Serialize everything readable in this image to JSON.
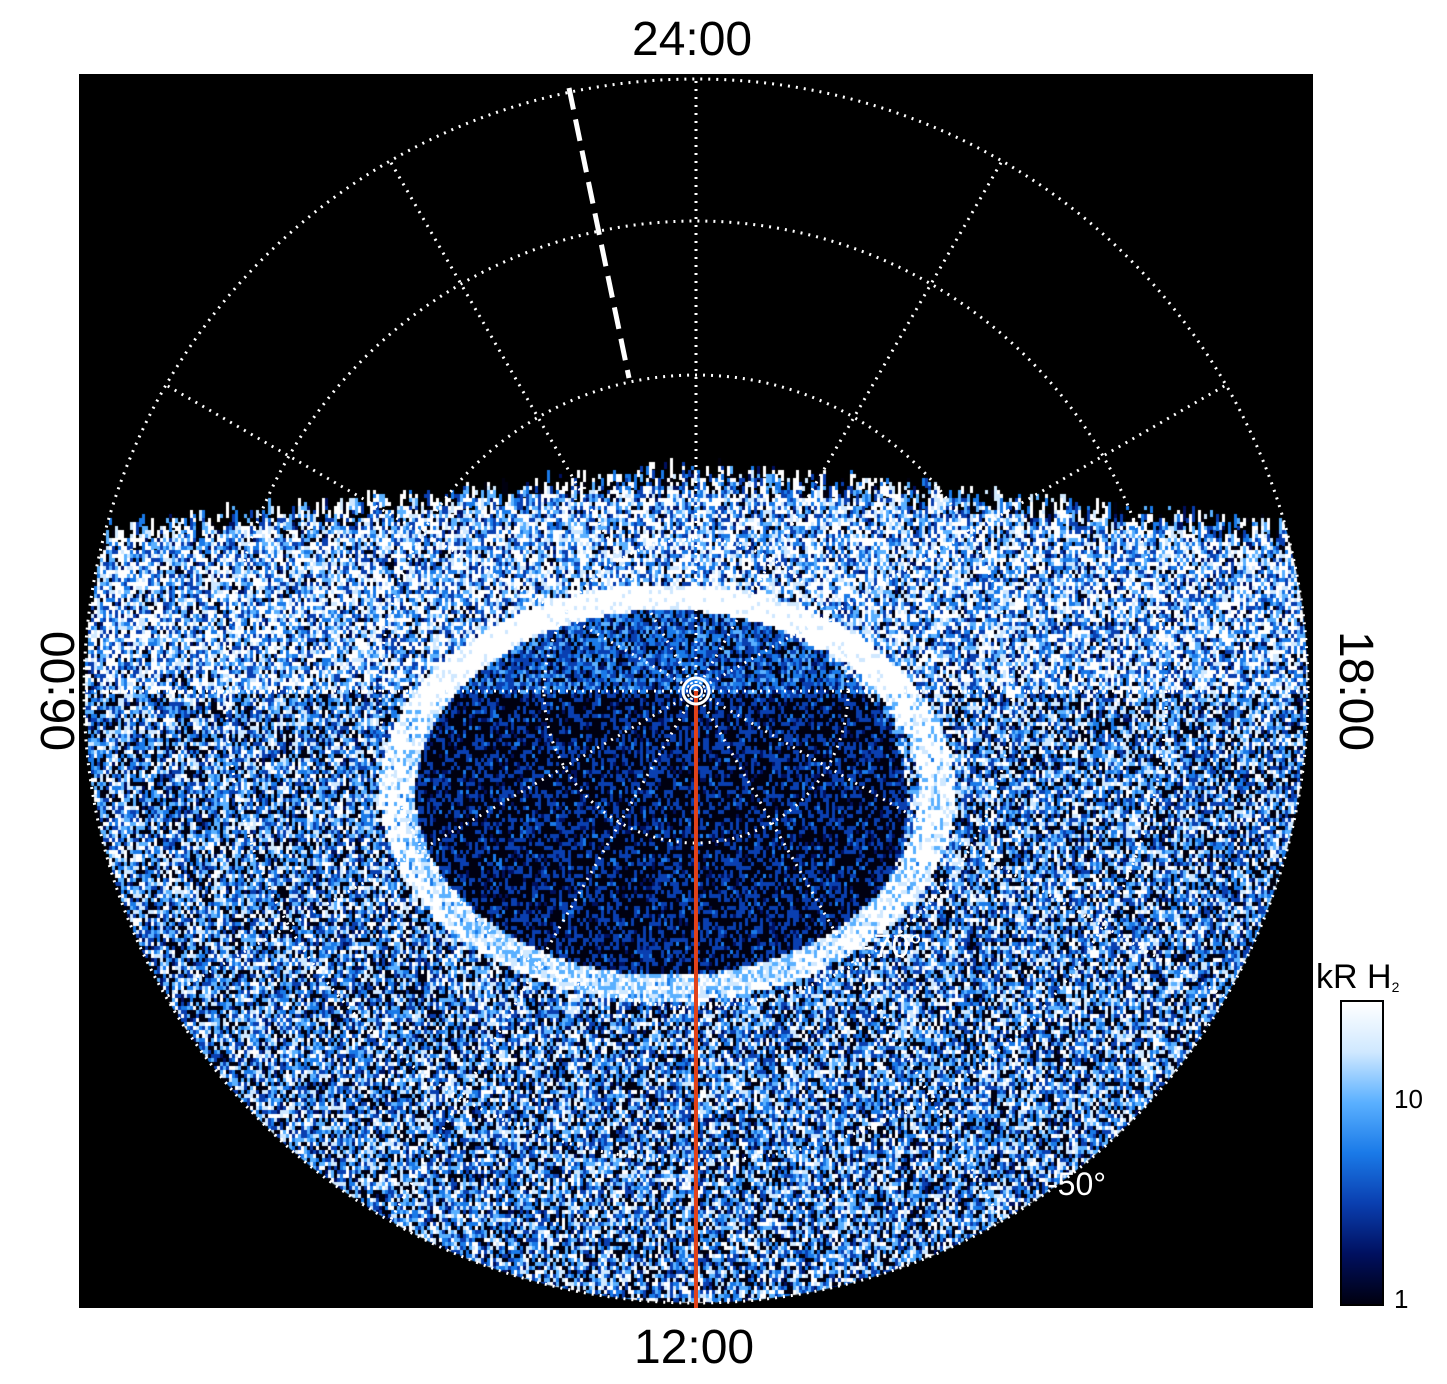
{
  "axes": {
    "top_label": "24:00",
    "bottom_label": "12:00",
    "left_label": "06:00",
    "right_label": "18:00"
  },
  "latitude_labels": [
    {
      "text": "-70°"
    },
    {
      "text": "-50°"
    }
  ],
  "colorbar": {
    "title_main": "kR H",
    "title_sub": "2",
    "ticks": [
      "10",
      "1"
    ],
    "colors": [
      "#000010",
      "#001060",
      "#0a3fb0",
      "#1a7ae8",
      "#5ab0ff",
      "#cfe8ff",
      "#ffffff"
    ]
  },
  "markers": {
    "noon_line_color": "#e0421a",
    "grid_color": "#ffffff"
  }
}
